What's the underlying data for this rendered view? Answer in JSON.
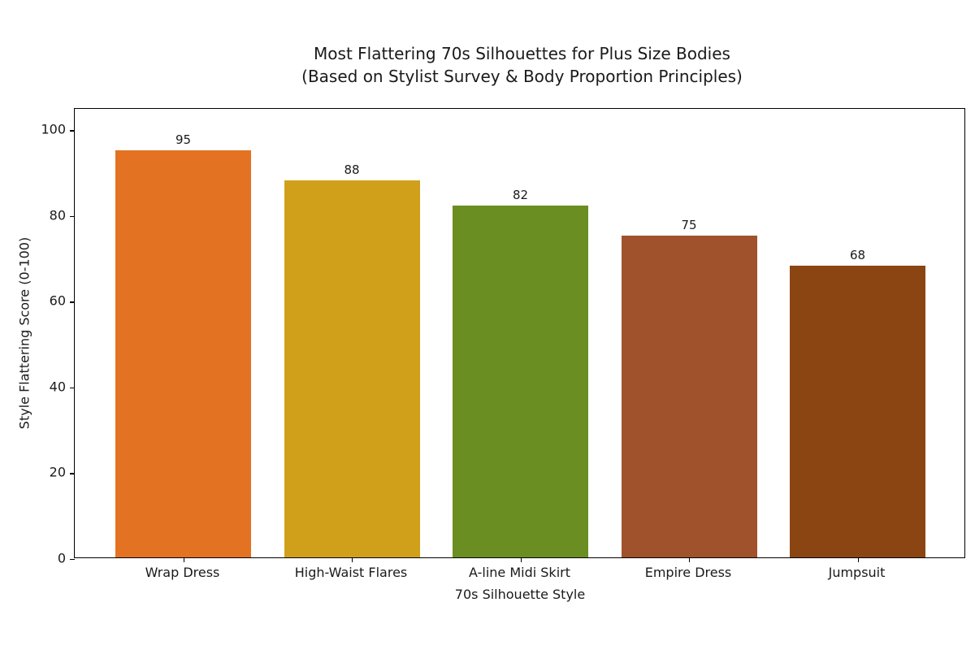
{
  "chart_data": {
    "type": "bar",
    "title": "Most Flattering 70s Silhouettes for Plus Size Bodies",
    "subtitle": "(Based on Stylist Survey & Body Proportion Principles)",
    "xlabel": "70s Silhouette Style",
    "ylabel": "Style Flattering Score (0-100)",
    "categories": [
      "Wrap Dress",
      "High-Waist Flares",
      "A-line Midi Skirt",
      "Empire Dress",
      "Jumpsuit"
    ],
    "values": [
      95,
      88,
      82,
      75,
      68
    ],
    "colors": [
      "#E37222",
      "#D1A01B",
      "#6B8E23",
      "#A0522D",
      "#8B4513"
    ],
    "data_labels": [
      "95",
      "88",
      "82",
      "75",
      "68"
    ],
    "ylim": [
      0,
      105
    ],
    "yticks": [
      0,
      20,
      40,
      60,
      80,
      100
    ],
    "grid": false,
    "legend": null
  }
}
